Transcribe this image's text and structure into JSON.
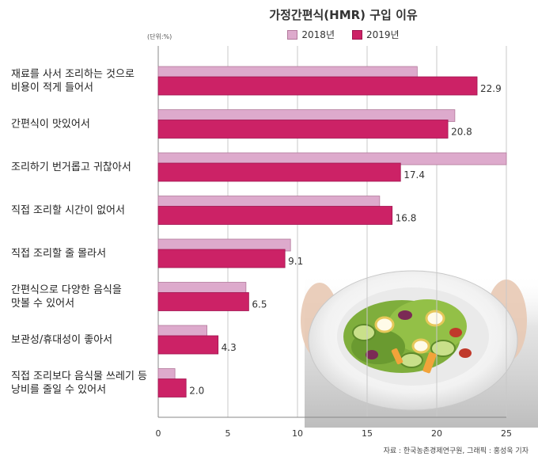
{
  "chart_data": {
    "type": "bar",
    "orientation": "horizontal",
    "title": "가정간편식(HMR) 구입 이유",
    "unit_label": "(단위:%)",
    "categories": [
      [
        "재료를 사서 조리하는 것으로",
        "비용이 적게 들어서"
      ],
      [
        "간편식이 맛있어서"
      ],
      [
        "조리하기 번거롭고 귀찮아서"
      ],
      [
        "직접 조리할 시간이 없어서"
      ],
      [
        "직접 조리할 줄 몰라서"
      ],
      [
        "간편식으로 다양한 음식을",
        "맛볼 수 있어서"
      ],
      [
        "보관성/휴대성이 좋아서"
      ],
      [
        "직접 조리보다 음식물 쓰레기 등",
        "낭비를 줄일 수 있어서"
      ]
    ],
    "series": [
      {
        "name": "2018년",
        "color": "#ddaacc",
        "values": [
          18.6,
          21.3,
          25.0,
          15.9,
          9.5,
          6.3,
          3.5,
          1.2
        ]
      },
      {
        "name": "2019년",
        "color": "#cc2266",
        "values": [
          22.9,
          20.8,
          17.4,
          16.8,
          9.1,
          6.5,
          4.3,
          2.0
        ]
      }
    ],
    "value_labels": [
      "22.9",
      "20.8",
      "17.4",
      "16.8",
      "9.1",
      "6.5",
      "4.3",
      "2.0"
    ],
    "xlim": [
      0,
      25
    ],
    "xticks": [
      0,
      5,
      10,
      15,
      20,
      25
    ],
    "grid": true,
    "legend_position": "top"
  },
  "source": "자료 : 한국농촌경제연구원, 그래픽 : 홍성욱 기자",
  "photo": {
    "icon": "salad-plate-photo"
  }
}
